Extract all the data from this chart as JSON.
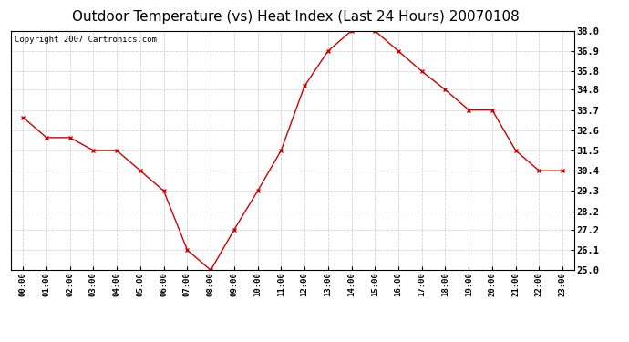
{
  "title": "Outdoor Temperature (vs) Heat Index (Last 24 Hours) 20070108",
  "copyright": "Copyright 2007 Cartronics.com",
  "x_labels": [
    "00:00",
    "01:00",
    "02:00",
    "03:00",
    "04:00",
    "05:00",
    "06:00",
    "07:00",
    "08:00",
    "09:00",
    "10:00",
    "11:00",
    "12:00",
    "13:00",
    "14:00",
    "15:00",
    "16:00",
    "17:00",
    "18:00",
    "19:00",
    "20:00",
    "21:00",
    "22:00",
    "23:00"
  ],
  "y_values": [
    33.3,
    32.2,
    32.2,
    31.5,
    31.5,
    30.4,
    29.3,
    26.1,
    25.0,
    27.2,
    29.3,
    31.5,
    35.0,
    36.9,
    38.0,
    38.0,
    36.9,
    35.8,
    34.8,
    33.7,
    33.7,
    31.5,
    30.4,
    30.4
  ],
  "y_ticks": [
    25.0,
    26.1,
    27.2,
    28.2,
    29.3,
    30.4,
    31.5,
    32.6,
    33.7,
    34.8,
    35.8,
    36.9,
    38.0
  ],
  "y_min": 25.0,
  "y_max": 38.0,
  "line_color": "#cc0000",
  "marker": "x",
  "marker_color": "#cc0000",
  "bg_color": "#ffffff",
  "grid_color": "#c8c8c8",
  "title_fontsize": 11,
  "copyright_fontsize": 6.5
}
